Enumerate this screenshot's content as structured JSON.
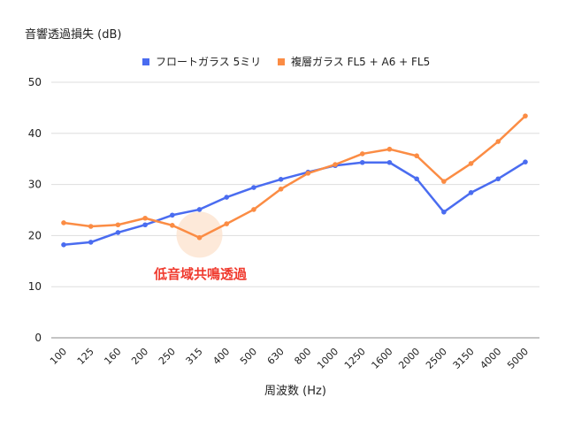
{
  "chart_data": {
    "type": "line",
    "ylabel": "音響透過損失 (dB)",
    "xlabel": "周波数 (Hz)",
    "ylim": [
      0,
      50
    ],
    "yticks": [
      0,
      10,
      20,
      30,
      40,
      50
    ],
    "grid": true,
    "legend_position": "top",
    "categories": [
      "100",
      "125",
      "160",
      "200",
      "250",
      "315",
      "400",
      "500",
      "630",
      "800",
      "1000",
      "1250",
      "1600",
      "2000",
      "2500",
      "3150",
      "4000",
      "5000"
    ],
    "series": [
      {
        "name": "フロートガラス 5ミリ",
        "color": "#4a6cf0",
        "values": [
          18.2,
          18.7,
          20.6,
          22.1,
          24.0,
          25.1,
          27.5,
          29.4,
          31.0,
          32.4,
          33.7,
          34.3,
          34.3,
          31.1,
          24.6,
          28.4,
          31.1,
          34.4
        ]
      },
      {
        "name": "複層ガラス FL5 + A6 + FL5",
        "color": "#fb8c44",
        "values": [
          22.5,
          21.8,
          22.1,
          23.4,
          22.0,
          19.6,
          22.3,
          25.1,
          29.1,
          32.2,
          33.9,
          36.0,
          36.9,
          35.6,
          30.6,
          34.1,
          38.4,
          43.4
        ]
      }
    ],
    "annotation": {
      "text": "低音域共鳴透過",
      "category": "315",
      "value": 20,
      "color": "#f03a2e",
      "highlight_color": "#fde3d0"
    }
  }
}
